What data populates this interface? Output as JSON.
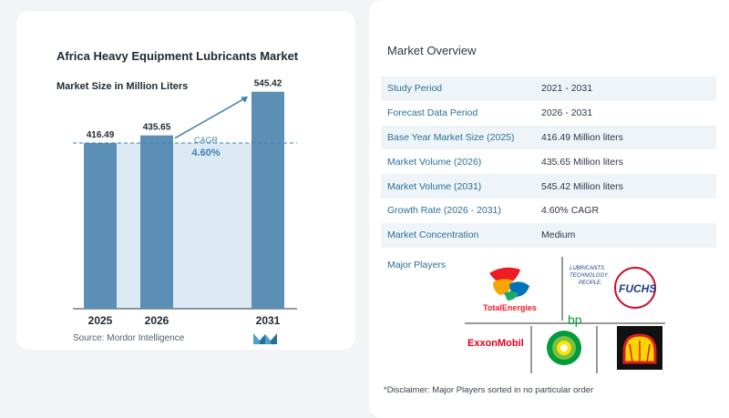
{
  "chart_title": "Africa Heavy Equipment Lubricants Market",
  "chart_subtitle": "Market Size in Million Liters",
  "source": "Source: Mordor Intelligence",
  "colors": {
    "bar": "#5b8fb5",
    "area": "#dceaf4",
    "accent": "#3f7fb3",
    "text": "#1f2933"
  },
  "chart_data": {
    "type": "bar",
    "categories": [
      "2025",
      "2026",
      "2031"
    ],
    "values": [
      416.49,
      435.65,
      545.42
    ],
    "value_labels": [
      "416.49",
      "435.65",
      "545.42"
    ],
    "cagr_label": "CAGR",
    "cagr_value": "4.60%",
    "ylim": [
      0,
      570
    ]
  },
  "overview": {
    "title": "Market Overview",
    "rows": [
      {
        "label": "Study Period",
        "value": "2021 - 2031"
      },
      {
        "label": "Forecast Data Period",
        "value": "2026 - 2031"
      },
      {
        "label": "Base Year Market Size (2025)",
        "value": "416.49 Million liters"
      },
      {
        "label": "Market Volume (2026)",
        "value": "435.65 Million liters"
      },
      {
        "label": "Market Volume (2031)",
        "value": "545.42 Million liters"
      },
      {
        "label": "Growth Rate (2026 - 2031)",
        "value": "4.60% CAGR"
      },
      {
        "label": "Market Concentration",
        "value": "Medium"
      }
    ],
    "major_players_label": "Major Players",
    "players": [
      {
        "name": "TotalEnergies",
        "icon": "totalenergies-logo"
      },
      {
        "name": "FUCHS",
        "icon": "fuchs-logo",
        "tagline": [
          "LUBRICANTS.",
          "TECHNOLOGY.",
          "PEOPLE."
        ]
      },
      {
        "name": "ExxonMobil",
        "icon": "exxonmobil-logo"
      },
      {
        "name": "bp",
        "icon": "bp-logo"
      },
      {
        "name": "Shell",
        "icon": "shell-logo"
      }
    ],
    "disclaimer": "*Disclaimer: Major Players sorted in no particular order"
  }
}
